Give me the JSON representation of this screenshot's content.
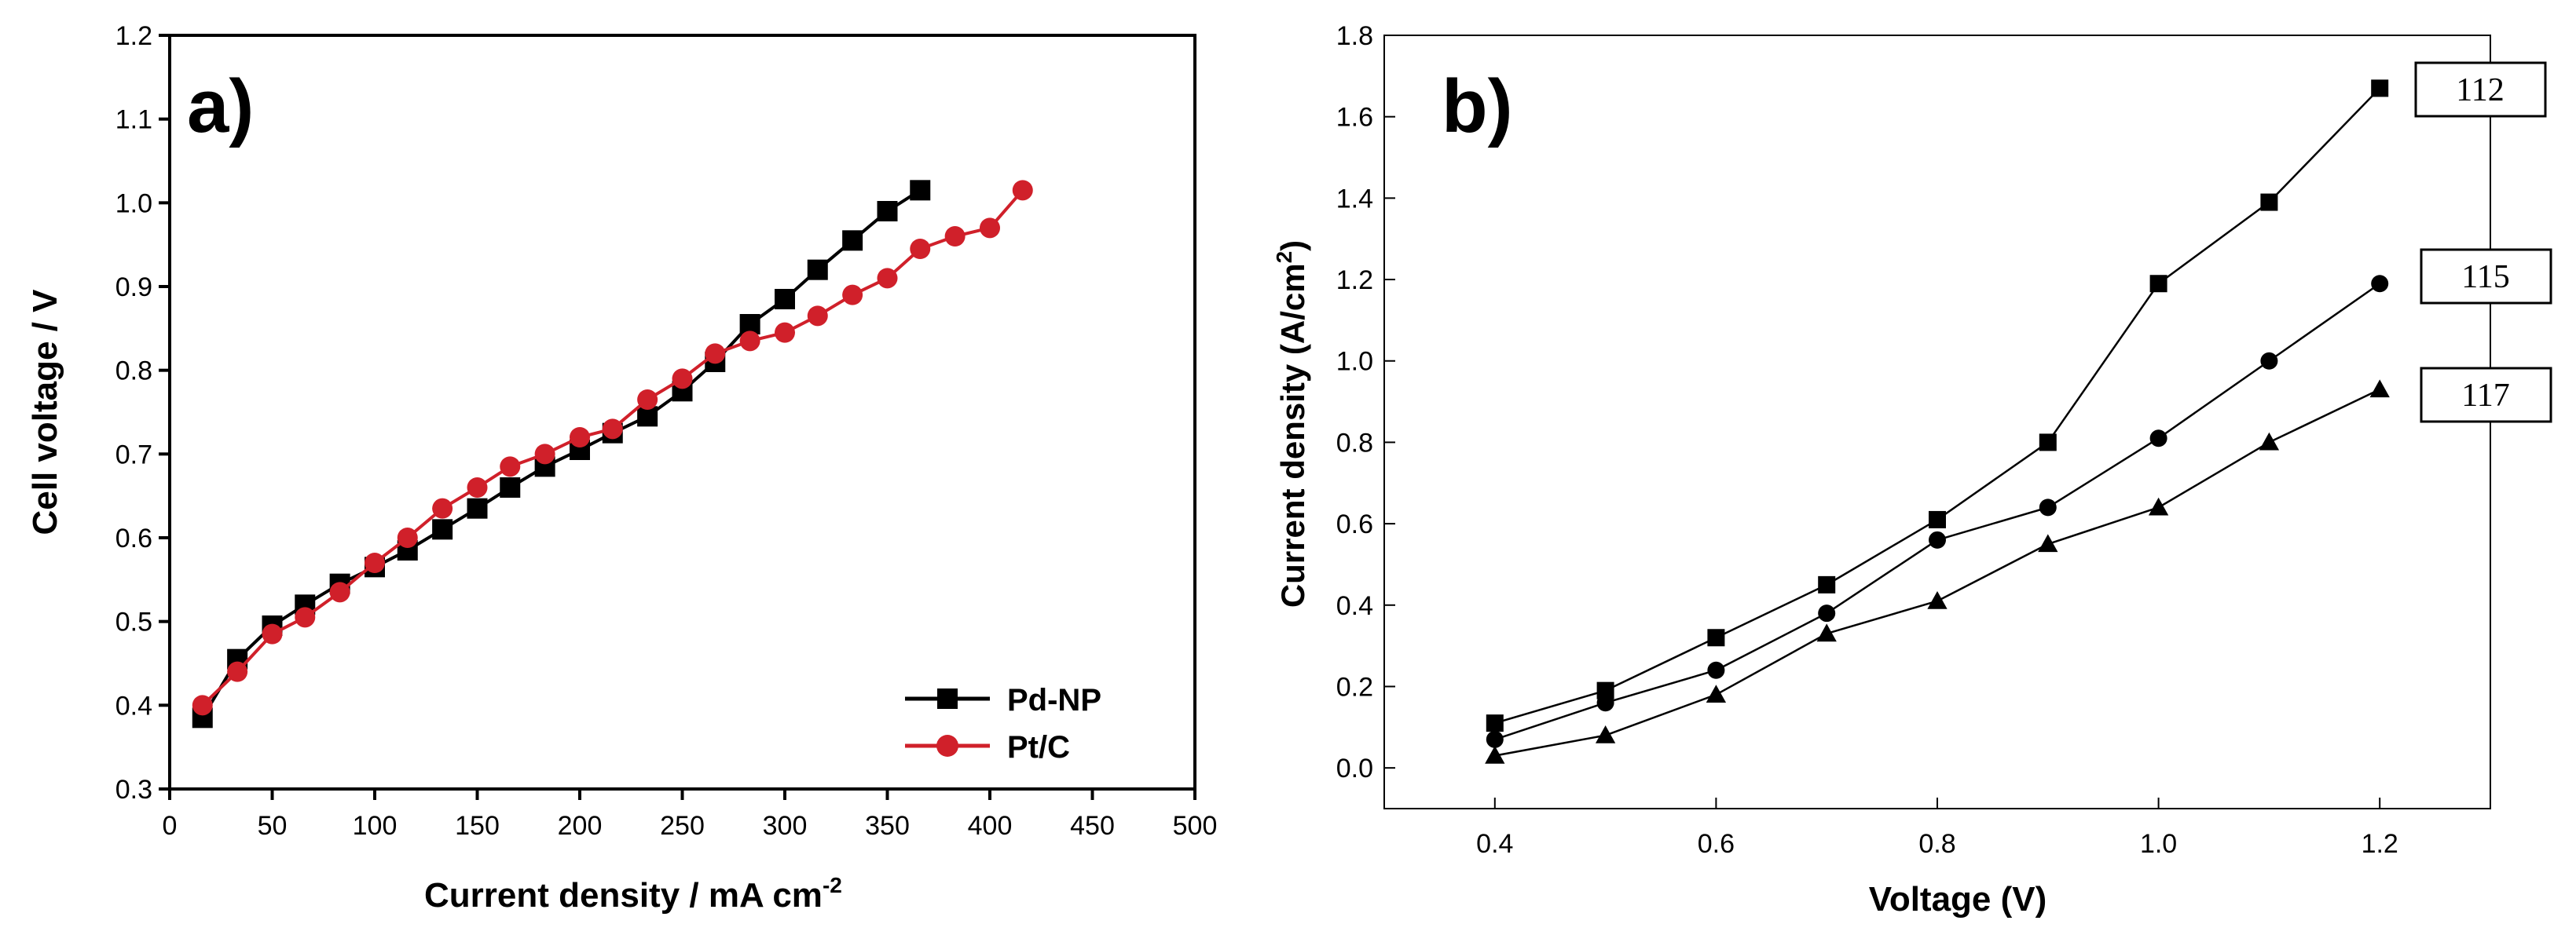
{
  "chart_data": [
    {
      "type": "line",
      "panel_label": "a)",
      "xlabel": "Current density / mA cm",
      "xlabel_sup": "-2",
      "ylabel": "Cell voltage / V",
      "xlim": [
        0,
        500
      ],
      "ylim": [
        0.3,
        1.2
      ],
      "xticks": [
        0,
        50,
        100,
        150,
        200,
        250,
        300,
        350,
        400,
        450,
        500
      ],
      "yticks": [
        "0.3",
        "0.4",
        "0.5",
        "0.6",
        "0.7",
        "0.8",
        "0.9",
        "1.0",
        "1.1",
        "1.2"
      ],
      "grid": false,
      "legend_position": "bottom-right",
      "series": [
        {
          "name": "Pd-NP",
          "color": "#000000",
          "marker": "square",
          "x": [
            16,
            33,
            50,
            66,
            83,
            100,
            116,
            133,
            150,
            166,
            183,
            200,
            216,
            233,
            250,
            266,
            283,
            300,
            316,
            333,
            350,
            366
          ],
          "y": [
            0.385,
            0.455,
            0.495,
            0.52,
            0.545,
            0.565,
            0.585,
            0.61,
            0.635,
            0.66,
            0.685,
            0.705,
            0.725,
            0.745,
            0.775,
            0.81,
            0.855,
            0.885,
            0.92,
            0.955,
            0.99,
            1.015
          ]
        },
        {
          "name": "Pt/C",
          "color": "#d0202a",
          "marker": "circle",
          "x": [
            16,
            33,
            50,
            66,
            83,
            100,
            116,
            133,
            150,
            166,
            183,
            200,
            216,
            233,
            250,
            266,
            283,
            300,
            316,
            333,
            350,
            366,
            383,
            400,
            416
          ],
          "y": [
            0.4,
            0.44,
            0.485,
            0.505,
            0.535,
            0.57,
            0.6,
            0.635,
            0.66,
            0.685,
            0.7,
            0.72,
            0.73,
            0.765,
            0.79,
            0.82,
            0.835,
            0.845,
            0.865,
            0.89,
            0.91,
            0.945,
            0.96,
            0.97,
            1.015
          ]
        }
      ]
    },
    {
      "type": "line",
      "panel_label": "b)",
      "xlabel": "Voltage (V)",
      "ylabel": "Current density (A/cm",
      "ylabel_sup": "2",
      "ylabel_suffix": ")",
      "xlim": [
        0.3,
        1.3
      ],
      "ylim": [
        -0.1,
        1.8
      ],
      "xticks": [
        "0.4",
        "0.6",
        "0.8",
        "1.0",
        "1.2"
      ],
      "yticks": [
        "0.0",
        "0.2",
        "0.4",
        "0.6",
        "0.8",
        "1.0",
        "1.2",
        "1.4",
        "1.6",
        "1.8"
      ],
      "grid": false,
      "series": [
        {
          "name": "112",
          "color": "#000000",
          "marker": "square",
          "x": [
            0.4,
            0.5,
            0.6,
            0.7,
            0.8,
            0.9,
            1.0,
            1.1,
            1.2
          ],
          "y": [
            0.11,
            0.19,
            0.32,
            0.45,
            0.61,
            0.8,
            1.19,
            1.39,
            1.67
          ]
        },
        {
          "name": "115",
          "color": "#000000",
          "marker": "circle",
          "x": [
            0.4,
            0.5,
            0.6,
            0.7,
            0.8,
            0.9,
            1.0,
            1.1,
            1.2
          ],
          "y": [
            0.07,
            0.16,
            0.24,
            0.38,
            0.56,
            0.64,
            0.81,
            1.0,
            1.19
          ]
        },
        {
          "name": "117",
          "color": "#000000",
          "marker": "triangle",
          "x": [
            0.4,
            0.5,
            0.6,
            0.7,
            0.8,
            0.9,
            1.0,
            1.1,
            1.2
          ],
          "y": [
            0.03,
            0.08,
            0.18,
            0.33,
            0.41,
            0.55,
            0.64,
            0.8,
            0.93
          ]
        }
      ]
    }
  ]
}
